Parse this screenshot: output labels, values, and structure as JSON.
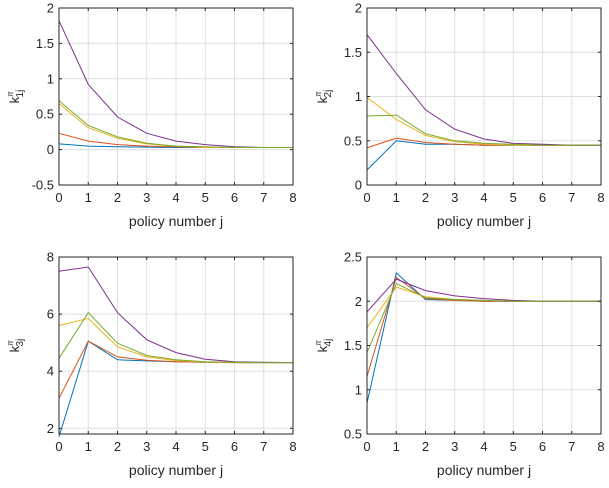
{
  "series_colors": [
    "#0072BD",
    "#D95319",
    "#EDB120",
    "#7E2F8E",
    "#77AC30"
  ],
  "chart_data": [
    {
      "type": "line",
      "ylabel": {
        "base": "k",
        "sup": "π",
        "sub": "1",
        "tail": "j"
      },
      "xlabel": "policy number j",
      "xlim": [
        0,
        8
      ],
      "ylim": [
        -0.5,
        2
      ],
      "xticks": [
        0,
        1,
        2,
        3,
        4,
        5,
        6,
        7,
        8
      ],
      "yticks": [
        -0.5,
        0,
        0.5,
        1,
        1.5,
        2
      ],
      "ytick_labels": [
        "-0.5",
        "0",
        "0.5",
        "1",
        "1.5",
        "2"
      ],
      "grid": true,
      "x": [
        0,
        1,
        2,
        3,
        4,
        5,
        6,
        7,
        8
      ],
      "series": [
        {
          "values": [
            0.08,
            0.05,
            0.04,
            0.035,
            0.03,
            0.03,
            0.03,
            0.03,
            0.03
          ]
        },
        {
          "values": [
            0.23,
            0.12,
            0.07,
            0.05,
            0.04,
            0.03,
            0.03,
            0.03,
            0.03
          ]
        },
        {
          "values": [
            0.65,
            0.31,
            0.16,
            0.08,
            0.05,
            0.03,
            0.03,
            0.03,
            0.03
          ]
        },
        {
          "values": [
            1.82,
            0.92,
            0.46,
            0.23,
            0.12,
            0.07,
            0.04,
            0.03,
            0.03
          ]
        },
        {
          "values": [
            0.69,
            0.34,
            0.18,
            0.09,
            0.05,
            0.04,
            0.03,
            0.03,
            0.03
          ]
        }
      ]
    },
    {
      "type": "line",
      "ylabel": {
        "base": "k",
        "sup": "π",
        "sub": "2",
        "tail": "j"
      },
      "xlabel": "policy number j",
      "xlim": [
        0,
        8
      ],
      "ylim": [
        0,
        2
      ],
      "xticks": [
        0,
        1,
        2,
        3,
        4,
        5,
        6,
        7,
        8
      ],
      "yticks": [
        0,
        0.5,
        1,
        1.5,
        2
      ],
      "ytick_labels": [
        "0",
        "0.5",
        "1",
        "1.5",
        "2"
      ],
      "grid": true,
      "x": [
        0,
        1,
        2,
        3,
        4,
        5,
        6,
        7,
        8
      ],
      "series": [
        {
          "values": [
            0.17,
            0.5,
            0.46,
            0.46,
            0.45,
            0.45,
            0.45,
            0.45,
            0.45
          ]
        },
        {
          "values": [
            0.42,
            0.53,
            0.48,
            0.46,
            0.45,
            0.45,
            0.45,
            0.45,
            0.45
          ]
        },
        {
          "values": [
            0.99,
            0.74,
            0.56,
            0.49,
            0.46,
            0.45,
            0.45,
            0.45,
            0.45
          ]
        },
        {
          "values": [
            1.7,
            1.26,
            0.85,
            0.63,
            0.52,
            0.47,
            0.46,
            0.45,
            0.45
          ]
        },
        {
          "values": [
            0.78,
            0.79,
            0.58,
            0.5,
            0.47,
            0.46,
            0.45,
            0.45,
            0.45
          ]
        }
      ]
    },
    {
      "type": "line",
      "ylabel": {
        "base": "k",
        "sup": "π",
        "sub": "3",
        "tail": "j"
      },
      "xlabel": "policy number j",
      "xlim": [
        0,
        8
      ],
      "ylim": [
        1.8,
        8
      ],
      "xticks": [
        0,
        1,
        2,
        3,
        4,
        5,
        6,
        7,
        8
      ],
      "yticks": [
        2,
        4,
        6,
        8
      ],
      "ytick_labels": [
        "2",
        "4",
        "6",
        "8"
      ],
      "grid": true,
      "x": [
        0,
        1,
        2,
        3,
        4,
        5,
        6,
        7,
        8
      ],
      "series": [
        {
          "values": [
            1.7,
            5.05,
            4.4,
            4.36,
            4.33,
            4.31,
            4.3,
            4.3,
            4.3
          ]
        },
        {
          "values": [
            3.05,
            5.05,
            4.5,
            4.38,
            4.33,
            4.31,
            4.3,
            4.3,
            4.3
          ]
        },
        {
          "values": [
            5.6,
            5.85,
            4.85,
            4.5,
            4.37,
            4.32,
            4.3,
            4.3,
            4.3
          ]
        },
        {
          "values": [
            7.5,
            7.65,
            6.05,
            5.1,
            4.65,
            4.42,
            4.33,
            4.31,
            4.3
          ]
        },
        {
          "values": [
            4.45,
            6.05,
            4.98,
            4.55,
            4.4,
            4.33,
            4.31,
            4.3,
            4.3
          ]
        }
      ]
    },
    {
      "type": "line",
      "ylabel": {
        "base": "k",
        "sup": "π",
        "sub": "4",
        "tail": "j"
      },
      "xlabel": "policy number j",
      "xlim": [
        0,
        8
      ],
      "ylim": [
        0.5,
        2.5
      ],
      "xticks": [
        0,
        1,
        2,
        3,
        4,
        5,
        6,
        7,
        8
      ],
      "yticks": [
        0.5,
        1,
        1.5,
        2,
        2.5
      ],
      "ytick_labels": [
        "0.5",
        "1",
        "1.5",
        "2",
        "2.5"
      ],
      "grid": true,
      "x": [
        0,
        1,
        2,
        3,
        4,
        5,
        6,
        7,
        8
      ],
      "series": [
        {
          "values": [
            0.85,
            2.32,
            2.02,
            2.01,
            2.0,
            2.0,
            2.0,
            2.0,
            2.0
          ]
        },
        {
          "values": [
            1.15,
            2.27,
            2.03,
            2.01,
            2.0,
            2.0,
            2.0,
            2.0,
            2.0
          ]
        },
        {
          "values": [
            1.7,
            2.16,
            2.05,
            2.02,
            2.01,
            2.0,
            2.0,
            2.0,
            2.0
          ]
        },
        {
          "values": [
            1.88,
            2.25,
            2.12,
            2.06,
            2.03,
            2.01,
            2.0,
            2.0,
            2.0
          ]
        },
        {
          "values": [
            1.42,
            2.2,
            2.04,
            2.02,
            2.01,
            2.0,
            2.0,
            2.0,
            2.0
          ]
        }
      ]
    }
  ]
}
